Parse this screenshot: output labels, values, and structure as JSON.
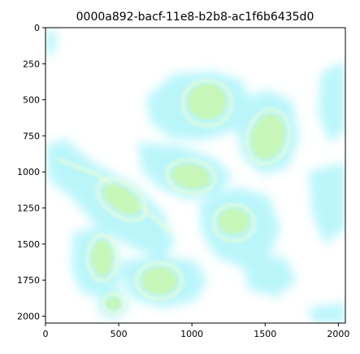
{
  "figure": {
    "title": "0000a892-bacf-11e8-b2b8-ac1f6b6435d0"
  },
  "image": {
    "description_colors": {
      "background": "#ffffff",
      "cytoplasm": "#b8f7fb",
      "nucleus": "#c6f7b8",
      "membrane_highlight": "#f4ffd6"
    },
    "extent": {
      "xmin": 0,
      "xmax": 2048,
      "ymin": 0,
      "ymax": 2048
    }
  },
  "axes": {
    "x_ticks": [
      0,
      500,
      1000,
      1500,
      2000
    ],
    "y_ticks": [
      0,
      250,
      500,
      750,
      1000,
      1250,
      1500,
      1750,
      2000
    ],
    "x_tick_labels": [
      "0",
      "500",
      "1000",
      "1500",
      "2000"
    ],
    "y_tick_labels": [
      "0",
      "250",
      "500",
      "750",
      "1000",
      "1250",
      "1500",
      "1750",
      "2000"
    ]
  }
}
